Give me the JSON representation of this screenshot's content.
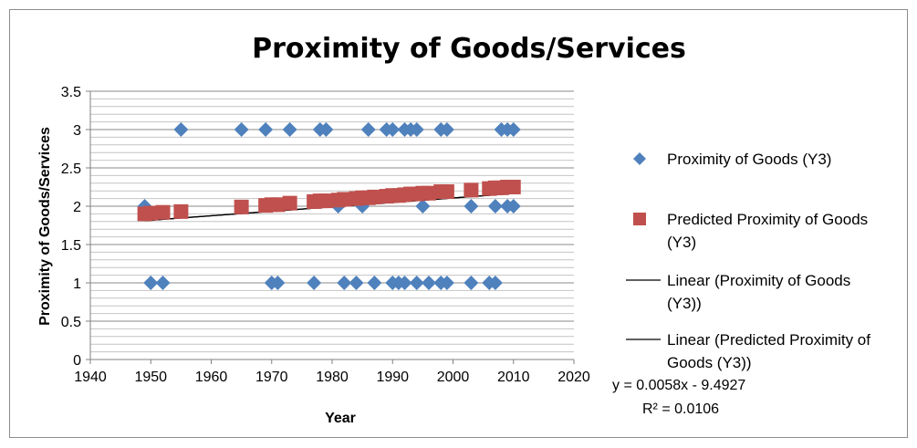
{
  "chart_data": {
    "type": "scatter",
    "title": "Proximity of Goods/Services",
    "xlabel": "Year",
    "ylabel": "Proximity of Goods/Services",
    "xlim": [
      1940,
      2020
    ],
    "ylim": [
      0,
      3.5
    ],
    "x_ticks": [
      1940,
      1950,
      1960,
      1970,
      1980,
      1990,
      2000,
      2010,
      2020
    ],
    "y_ticks": [
      "0",
      "0.5",
      "1",
      "1.5",
      "2",
      "2.5",
      "3",
      "3.5"
    ],
    "y_tick_values": [
      0,
      0.5,
      1,
      1.5,
      2,
      2.5,
      3,
      3.5
    ],
    "x_tick_labels": [
      "1940",
      "1950",
      "1960",
      "1970",
      "1980",
      "1990",
      "2000",
      "2010",
      "2020"
    ],
    "grid": "horizontal",
    "legend_position": "right",
    "series": [
      {
        "name": "Proximity of Goods (Y3)",
        "marker": "diamond",
        "color": "#4f81bd",
        "points": [
          [
            1949,
            2
          ],
          [
            1950,
            1
          ],
          [
            1952,
            1
          ],
          [
            1955,
            3
          ],
          [
            1965,
            3
          ],
          [
            1969,
            3
          ],
          [
            1970,
            1
          ],
          [
            1971,
            1
          ],
          [
            1973,
            3
          ],
          [
            1977,
            1
          ],
          [
            1978,
            3
          ],
          [
            1979,
            3
          ],
          [
            1981,
            2
          ],
          [
            1982,
            1
          ],
          [
            1984,
            1
          ],
          [
            1985,
            2
          ],
          [
            1986,
            3
          ],
          [
            1987,
            1
          ],
          [
            1989,
            3
          ],
          [
            1990,
            3
          ],
          [
            1990,
            1
          ],
          [
            1991,
            1
          ],
          [
            1992,
            3
          ],
          [
            1992,
            1
          ],
          [
            1993,
            3
          ],
          [
            1994,
            3
          ],
          [
            1994,
            1
          ],
          [
            1995,
            2
          ],
          [
            1996,
            1
          ],
          [
            1998,
            3
          ],
          [
            1998,
            1
          ],
          [
            1999,
            3
          ],
          [
            1999,
            1
          ],
          [
            2003,
            2
          ],
          [
            2003,
            1
          ],
          [
            2006,
            1
          ],
          [
            2007,
            2
          ],
          [
            2007,
            1
          ],
          [
            2008,
            3
          ],
          [
            2009,
            3
          ],
          [
            2009,
            2
          ],
          [
            2010,
            3
          ],
          [
            2010,
            2
          ]
        ]
      },
      {
        "name": "Predicted Proximity of Goods (Y3)",
        "marker": "square",
        "color": "#c0504d",
        "points": [
          [
            1949,
            1.9
          ],
          [
            1950,
            1.91
          ],
          [
            1952,
            1.92
          ],
          [
            1955,
            1.93
          ],
          [
            1965,
            1.99
          ],
          [
            1969,
            2.01
          ],
          [
            1970,
            2.02
          ],
          [
            1971,
            2.02
          ],
          [
            1973,
            2.04
          ],
          [
            1977,
            2.06
          ],
          [
            1978,
            2.07
          ],
          [
            1979,
            2.07
          ],
          [
            1981,
            2.08
          ],
          [
            1982,
            2.09
          ],
          [
            1984,
            2.1
          ],
          [
            1985,
            2.11
          ],
          [
            1986,
            2.11
          ],
          [
            1987,
            2.12
          ],
          [
            1989,
            2.13
          ],
          [
            1990,
            2.14
          ],
          [
            1991,
            2.14
          ],
          [
            1992,
            2.15
          ],
          [
            1993,
            2.16
          ],
          [
            1994,
            2.16
          ],
          [
            1995,
            2.17
          ],
          [
            1996,
            2.17
          ],
          [
            1998,
            2.19
          ],
          [
            1999,
            2.19
          ],
          [
            2003,
            2.21
          ],
          [
            2006,
            2.23
          ],
          [
            2007,
            2.24
          ],
          [
            2008,
            2.24
          ],
          [
            2009,
            2.25
          ],
          [
            2010,
            2.25
          ]
        ]
      }
    ],
    "trendlines": [
      {
        "name": "Linear (Proximity of Goods (Y3))",
        "slope": 0.0058,
        "intercept": -9.4927,
        "x_range": [
          1949,
          2010
        ],
        "color": "#000000"
      },
      {
        "name": "Linear (Predicted Proximity of Goods (Y3))",
        "slope": 0.0058,
        "intercept": -9.4927,
        "x_range": [
          1949,
          2010
        ],
        "color": "#000000"
      }
    ],
    "legend": [
      {
        "label_lines": [
          "Proximity of Goods (Y3)"
        ],
        "marker": "diamond",
        "color": "#4f81bd"
      },
      {
        "label_lines": [
          "Predicted Proximity of Goods",
          "(Y3)"
        ],
        "marker": "square",
        "color": "#c0504d"
      },
      {
        "label_lines": [
          "Linear (Proximity of Goods",
          "(Y3))"
        ],
        "marker": "line",
        "color": "#000000"
      },
      {
        "label_lines": [
          "Linear (Predicted Proximity of",
          "Goods (Y3))"
        ],
        "marker": "line",
        "color": "#000000"
      }
    ],
    "equation": "y = 0.0058x - 9.4927",
    "r_squared": "R² = 0.0106"
  }
}
